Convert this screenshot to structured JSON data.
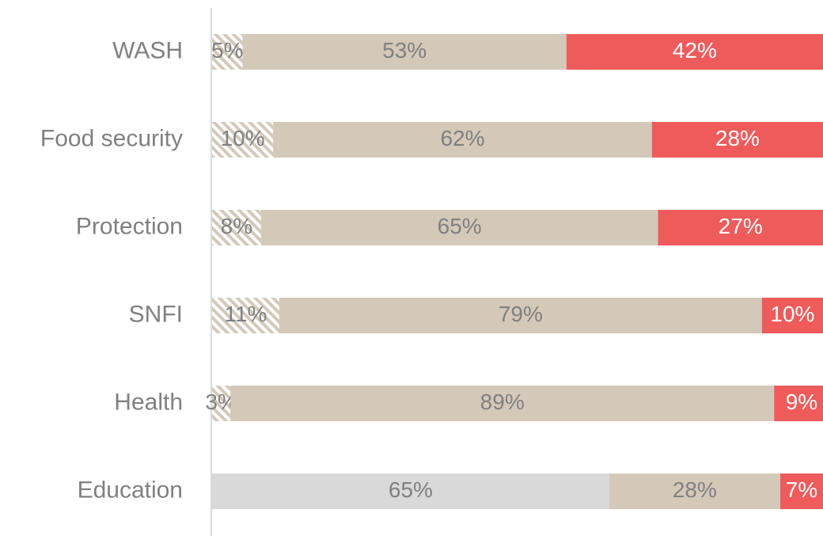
{
  "chart_data": {
    "type": "stacked-bar-horizontal",
    "categories": [
      "WASH",
      "Food security",
      "Protection",
      "SNFI",
      "Health",
      "Education"
    ],
    "xlim": [
      0,
      100
    ],
    "series": [
      {
        "values": [
          5,
          10,
          8,
          11,
          3,
          65
        ],
        "value_labels": [
          "5%",
          "10%",
          "8%",
          "11%",
          "3%",
          "65%"
        ],
        "colors": [
          "#d4c8b8",
          "#d4c8b8",
          "#d4c8b8",
          "#d4c8b8",
          "#d4c8b8",
          "#d9d9d9"
        ],
        "patterns": [
          "hatch",
          "hatch",
          "hatch",
          "hatch",
          "hatch",
          "solid"
        ],
        "label_color": "#808080"
      },
      {
        "values": [
          53,
          62,
          65,
          79,
          89,
          28
        ],
        "value_labels": [
          "53%",
          "62%",
          "65%",
          "79%",
          "89%",
          "28%"
        ],
        "color": "#d4c8b8",
        "label_color": "#808080"
      },
      {
        "values": [
          42,
          28,
          27,
          10,
          9,
          7
        ],
        "value_labels": [
          "42%",
          "28%",
          "27%",
          "10%",
          "9%",
          "7%"
        ],
        "color": "#ef5a5a",
        "label_color": "#ffffff"
      }
    ]
  }
}
